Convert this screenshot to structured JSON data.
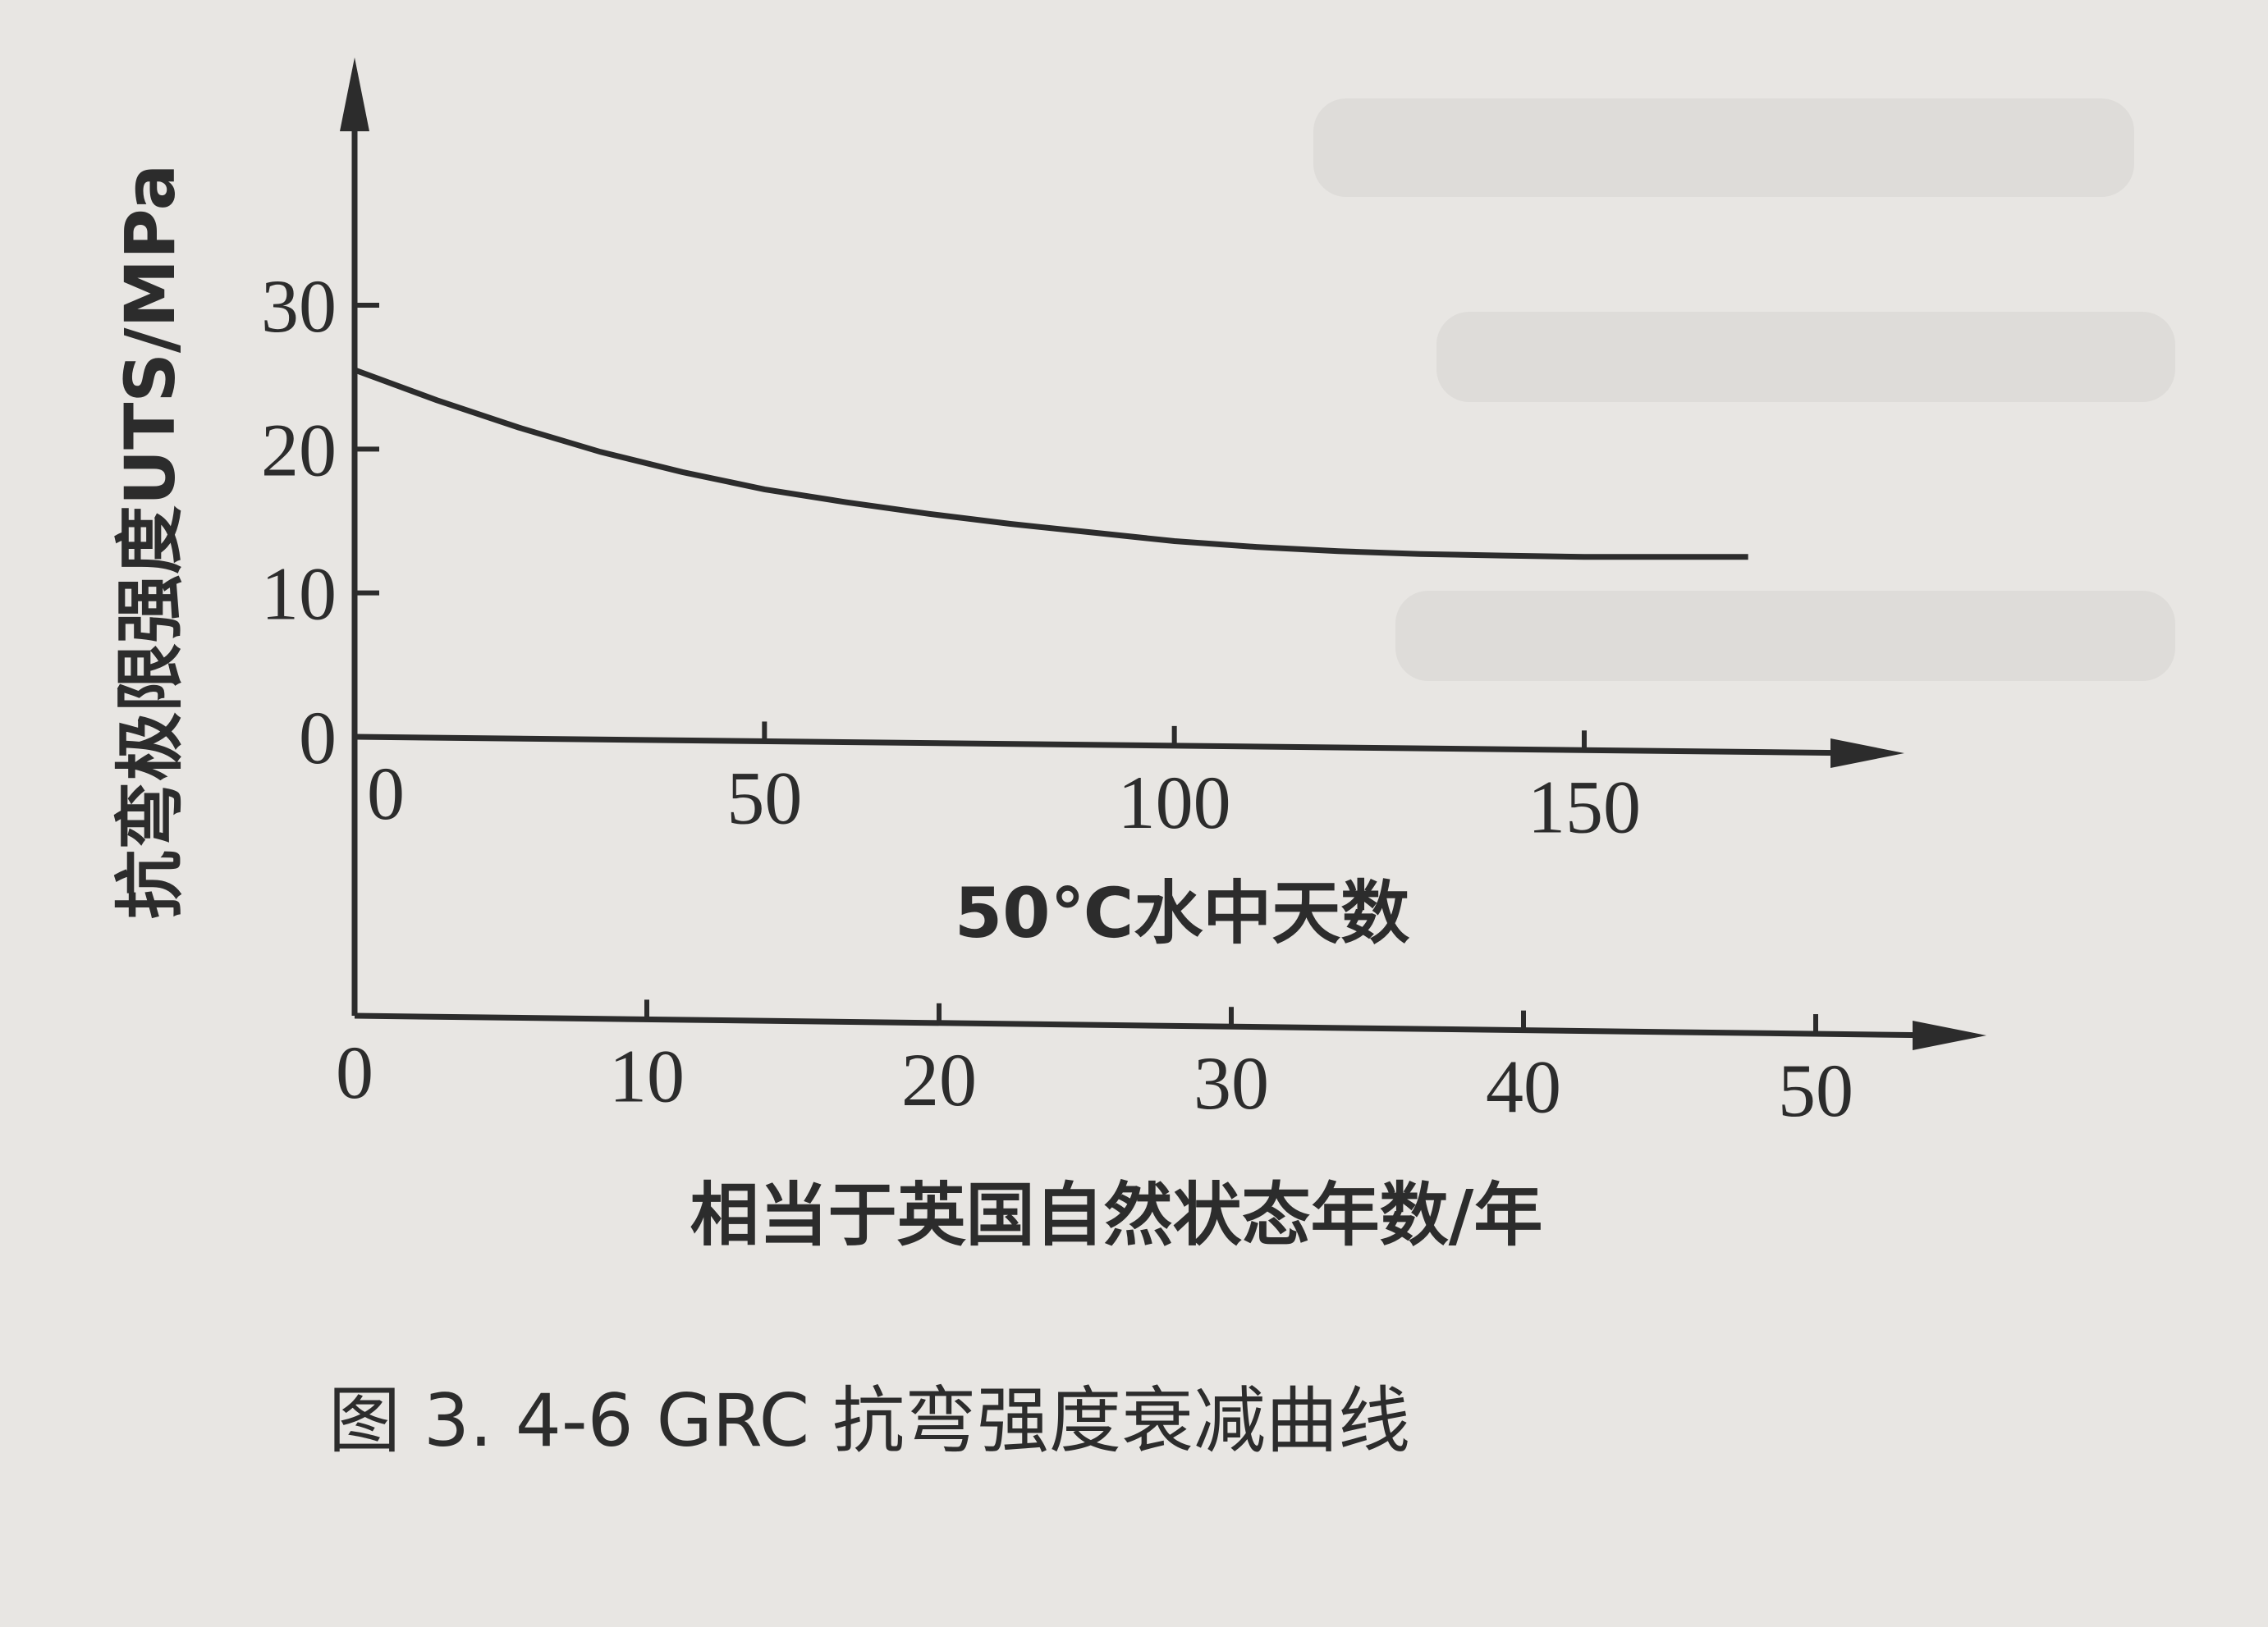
{
  "chart_data": {
    "type": "line",
    "caption": "图 3. 4-6 GRC 抗弯强度衰减曲线",
    "ylabel": "抗弯极限强度UTS/MPa",
    "xlabel": "50℃水中天数",
    "x2label": "相当于英国自然状态年数/年",
    "yticks": [
      "0",
      "10",
      "20",
      "30"
    ],
    "xticks": [
      "0",
      "50",
      "100",
      "150"
    ],
    "x2ticks": [
      "0",
      "10",
      "20",
      "30",
      "40",
      "50"
    ],
    "ylim": [
      0,
      30
    ],
    "xlim": [
      0,
      175
    ],
    "x2lim": [
      0,
      50
    ],
    "grid": false,
    "series": [
      {
        "x": [
          0,
          10,
          20,
          30,
          40,
          50,
          60,
          70,
          80,
          90,
          100,
          110,
          120,
          130,
          140,
          150,
          160,
          170
        ],
        "y": [
          25.5,
          23.4,
          21.5,
          19.8,
          18.4,
          17.2,
          16.3,
          15.5,
          14.8,
          14.2,
          13.6,
          13.2,
          12.9,
          12.7,
          12.6,
          12.5,
          12.5,
          12.5
        ]
      }
    ]
  }
}
